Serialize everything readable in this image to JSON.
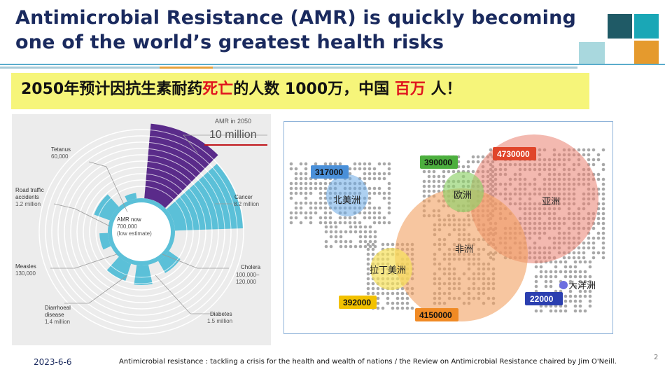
{
  "slide": {
    "title_line1": "Antimicrobial Resistance (AMR) is quickly becoming",
    "title_line2": "one of the world’s greatest health risks",
    "banner_part1": "2050年预计因抗生素耐药",
    "banner_red1": "死亡",
    "banner_part2": "的人数 1000万，中国 ",
    "banner_red2": "百万",
    "banner_part3": " 人！",
    "footer_date": "2023-6-6",
    "footer_citation": "Antimicrobial resistance : tackling a crisis for the health and wealth of nations / the Review on Antimicrobial Resistance chaired by Jim O'Neill.",
    "page_number": "2",
    "colors": {
      "title": "#1a2a5e",
      "banner_bg": "#f6f57a",
      "accent_red": "#e0141e",
      "teal_dark": "#1f5a66",
      "teal": "#1aa7b6",
      "orange": "#e59a2d"
    }
  },
  "chart_data": [
    {
      "type": "radial-bar",
      "categories": [
        {
          "name": "AMR in 2050",
          "value": "10 million"
        },
        {
          "name": "Cancer",
          "value": "8.2 million"
        },
        {
          "name": "Cholera",
          "value": "100,000–\n120,000"
        },
        {
          "name": "Diabetes",
          "value": "1.5 million"
        },
        {
          "name": "Diarrhoeal disease",
          "value": "1.4 million"
        },
        {
          "name": "Measles",
          "value": "130,000"
        },
        {
          "name": "Road traffic accidents",
          "value": "1.2 million"
        },
        {
          "name": "Tetanus",
          "value": "60,000"
        }
      ],
      "center_label": "AMR now",
      "center_value": "700,000",
      "center_note": "(low estimate)",
      "labels": {
        "amr2050_title": "AMR in 2050",
        "amr2050_value": "10 million",
        "cancer_title": "Cancer",
        "cancer_value": "8.2 million",
        "cholera_title": "Cholera",
        "cholera_value1": "100,000–",
        "cholera_value2": "120,000",
        "diabetes_title": "Diabetes",
        "diabetes_value": "1.5 million",
        "diarrhoeal_title1": "Diarrhoeal",
        "diarrhoeal_title2": "disease",
        "diarrhoeal_value": "1.4 million",
        "measles_title": "Measles",
        "measles_value": "130,000",
        "road_title1": "Road traffic",
        "road_title2": "accidents",
        "road_value": "1.2 million",
        "tetanus_title": "Tetanus",
        "tetanus_value": "60,000"
      },
      "colors": {
        "amr": "#5a2b8a",
        "other": "#5bc0d8"
      }
    },
    {
      "type": "bubble-map",
      "regions": [
        {
          "name": "北美洲",
          "value": "317000",
          "color": "#4a90d9"
        },
        {
          "name": "欧洲",
          "value": "390000",
          "color": "#4caf3e"
        },
        {
          "name": "亚洲",
          "value": "4730000",
          "color": "#e0452a"
        },
        {
          "name": "非洲",
          "value": "4150000",
          "color": "#f08a24"
        },
        {
          "name": "拉丁美洲",
          "value": "392000",
          "color": "#f2c100"
        },
        {
          "name": "大洋洲",
          "value": "22000",
          "color": "#2b3fb0"
        }
      ]
    }
  ]
}
